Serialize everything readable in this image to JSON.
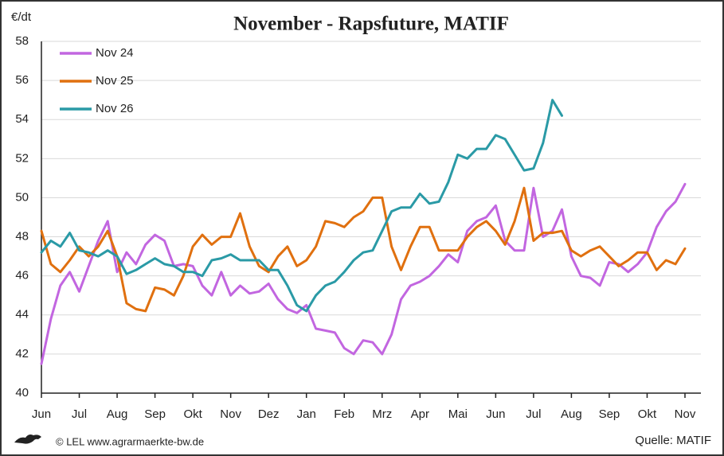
{
  "chart_data": {
    "type": "line",
    "title": "November - Rapsfuture, MATIF",
    "y_label": "€/dt",
    "credit": "© LEL www.agrarmaerkte-bw.de",
    "source": "Quelle: MATIF",
    "categories": [
      "Jun",
      null,
      null,
      null,
      "Jul",
      null,
      null,
      null,
      "Aug",
      null,
      null,
      null,
      "Sep",
      null,
      null,
      null,
      "Okt",
      null,
      null,
      null,
      "Nov",
      null,
      null,
      null,
      "Dez",
      null,
      null,
      null,
      "Jan",
      null,
      null,
      null,
      "Feb",
      null,
      null,
      null,
      "Mrz",
      null,
      null,
      null,
      "Apr",
      null,
      null,
      null,
      "Mai",
      null,
      null,
      null,
      "Jun",
      null,
      null,
      null,
      "Jul",
      null,
      null,
      null,
      "Aug",
      null,
      null,
      null,
      "Sep",
      null,
      null,
      null,
      "Okt",
      null,
      null,
      null,
      "Nov"
    ],
    "series": [
      {
        "name": "Nov 24",
        "color": "#c266e0",
        "values": [
          41.5,
          43.8,
          45.5,
          46.2,
          45.2,
          46.5,
          47.8,
          48.8,
          46.2,
          47.2,
          46.6,
          47.6,
          48.1,
          47.8,
          46.5,
          46.6,
          46.5,
          45.5,
          45,
          46.2,
          45,
          45.5,
          45.1,
          45.2,
          45.6,
          44.8,
          44.3,
          44.1,
          44.5,
          43.3,
          43.2,
          43.1,
          42.3,
          42,
          42.7,
          42.6,
          42,
          43,
          44.8,
          45.5,
          45.7,
          46,
          46.5,
          47.1,
          46.7,
          48.3,
          48.8,
          49,
          49.6,
          47.8,
          47.3,
          47.3,
          50.5,
          48,
          48.3,
          49.4,
          47,
          46,
          45.9,
          45.5,
          46.7,
          46.6,
          46.2,
          46.6,
          47.2,
          48.5,
          49.3,
          49.8,
          50.7
        ]
      },
      {
        "name": "Nov 25",
        "color": "#e0700f",
        "values": [
          48.3,
          46.6,
          46.2,
          46.8,
          47.5,
          47,
          47.5,
          48.3,
          47,
          44.6,
          44.3,
          44.2,
          45.4,
          45.3,
          45,
          46,
          47.5,
          48.1,
          47.6,
          48,
          48,
          49.2,
          47.5,
          46.5,
          46.2,
          47,
          47.5,
          46.5,
          46.8,
          47.5,
          48.8,
          48.7,
          48.5,
          49,
          49.3,
          50,
          50,
          47.5,
          46.3,
          47.5,
          48.5,
          48.5,
          47.3,
          47.3,
          47.3,
          48,
          48.5,
          48.8,
          48.3,
          47.6,
          48.8,
          50.5,
          47.8,
          48.2,
          48.2,
          48.3,
          47.3,
          47,
          47.3,
          47.5,
          47,
          46.5,
          46.8,
          47.2,
          47.2,
          46.3,
          46.8,
          46.6,
          47.4
        ]
      },
      {
        "name": "Nov 26",
        "color": "#2a9aa6",
        "values": [
          47.2,
          47.8,
          47.5,
          48.2,
          47.3,
          47.2,
          47,
          47.3,
          47,
          46.1,
          46.3,
          46.6,
          46.9,
          46.6,
          46.5,
          46.2,
          46.2,
          46,
          46.8,
          46.9,
          47.1,
          46.8,
          46.8,
          46.8,
          46.3,
          46.3,
          45.5,
          44.5,
          44.2,
          45,
          45.5,
          45.7,
          46.2,
          46.8,
          47.2,
          47.3,
          48.3,
          49.3,
          49.5,
          49.5,
          50.2,
          49.7,
          49.8,
          50.8,
          52.2,
          52,
          52.5,
          52.5,
          53.2,
          53,
          52.2,
          51.4,
          51.5,
          52.8,
          55,
          54.2,
          null,
          null,
          null,
          null,
          null,
          null,
          null,
          null,
          null,
          null,
          null,
          null,
          null
        ]
      }
    ],
    "ylim": [
      40,
      58
    ],
    "yticks": [
      40,
      42,
      44,
      46,
      48,
      50,
      52,
      54,
      56,
      58
    ],
    "grid": true,
    "legend": "top-left"
  }
}
